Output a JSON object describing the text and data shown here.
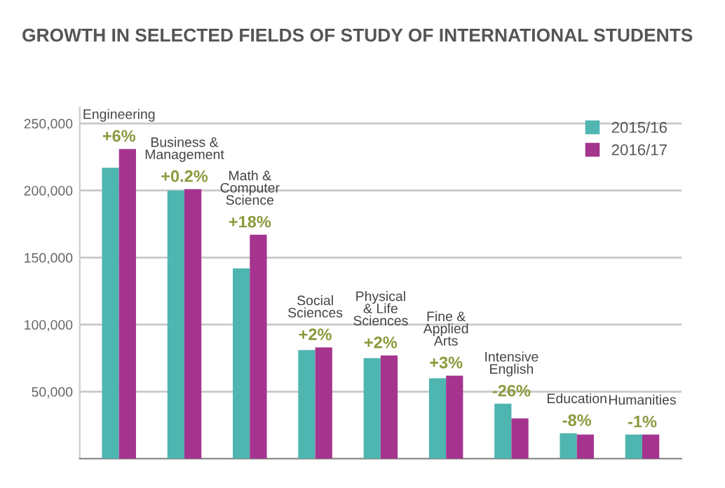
{
  "chart_data": {
    "type": "bar",
    "title": "GROWTH IN SELECTED FIELDS OF STUDY OF INTERNATIONAL STUDENTS",
    "categories": [
      "Engineering",
      "Business &\nManagement",
      "Math &\nComputer\nScience",
      "Social\nSciences",
      "Physical\n& Life\nSciences",
      "Fine &\nApplied\nArts",
      "Intensive\nEnglish",
      "Education",
      "Humanities"
    ],
    "series": [
      {
        "name": "2015/16",
        "color": "#4fb5b0",
        "values": [
          217000,
          200000,
          142000,
          81000,
          75000,
          60000,
          41000,
          19000,
          18000
        ]
      },
      {
        "name": "2016/17",
        "color": "#a5348e",
        "values": [
          231000,
          201000,
          167000,
          83000,
          77000,
          62000,
          30000,
          18000,
          18000
        ]
      }
    ],
    "annotations": [
      {
        "text": "+6%",
        "x": "Engineering",
        "y": 231000
      },
      {
        "text": "+0.2%",
        "x": "Business &\nManagement",
        "y": 201000
      },
      {
        "text": "+18%",
        "x": "Math &\nComputer\nScience",
        "y": 167000
      },
      {
        "text": "+2%",
        "x": "Social\nSciences",
        "y": 83000
      },
      {
        "text": "+2%",
        "x": "Physical\n& Life\nSciences",
        "y": 77000
      },
      {
        "text": "+3%",
        "x": "Fine &\nApplied\nArts",
        "y": 62000
      },
      {
        "text": "-26%",
        "x": "Intensive\nEnglish",
        "y": 41000
      },
      {
        "text": "-8%",
        "x": "Education",
        "y": 19000
      },
      {
        "text": "-1%",
        "x": "Humanities",
        "y": 18000
      }
    ],
    "ylim": [
      0,
      262000
    ],
    "yticks": [
      {
        "value": 0,
        "label": null
      },
      {
        "value": 50000,
        "label": "50,000"
      },
      {
        "value": 100000,
        "label": "100,000"
      },
      {
        "value": 150000,
        "label": "150,000"
      },
      {
        "value": 200000,
        "label": "200,000"
      },
      {
        "value": 250000,
        "label": "250,000"
      }
    ],
    "grid": "y",
    "legend": "top right"
  }
}
